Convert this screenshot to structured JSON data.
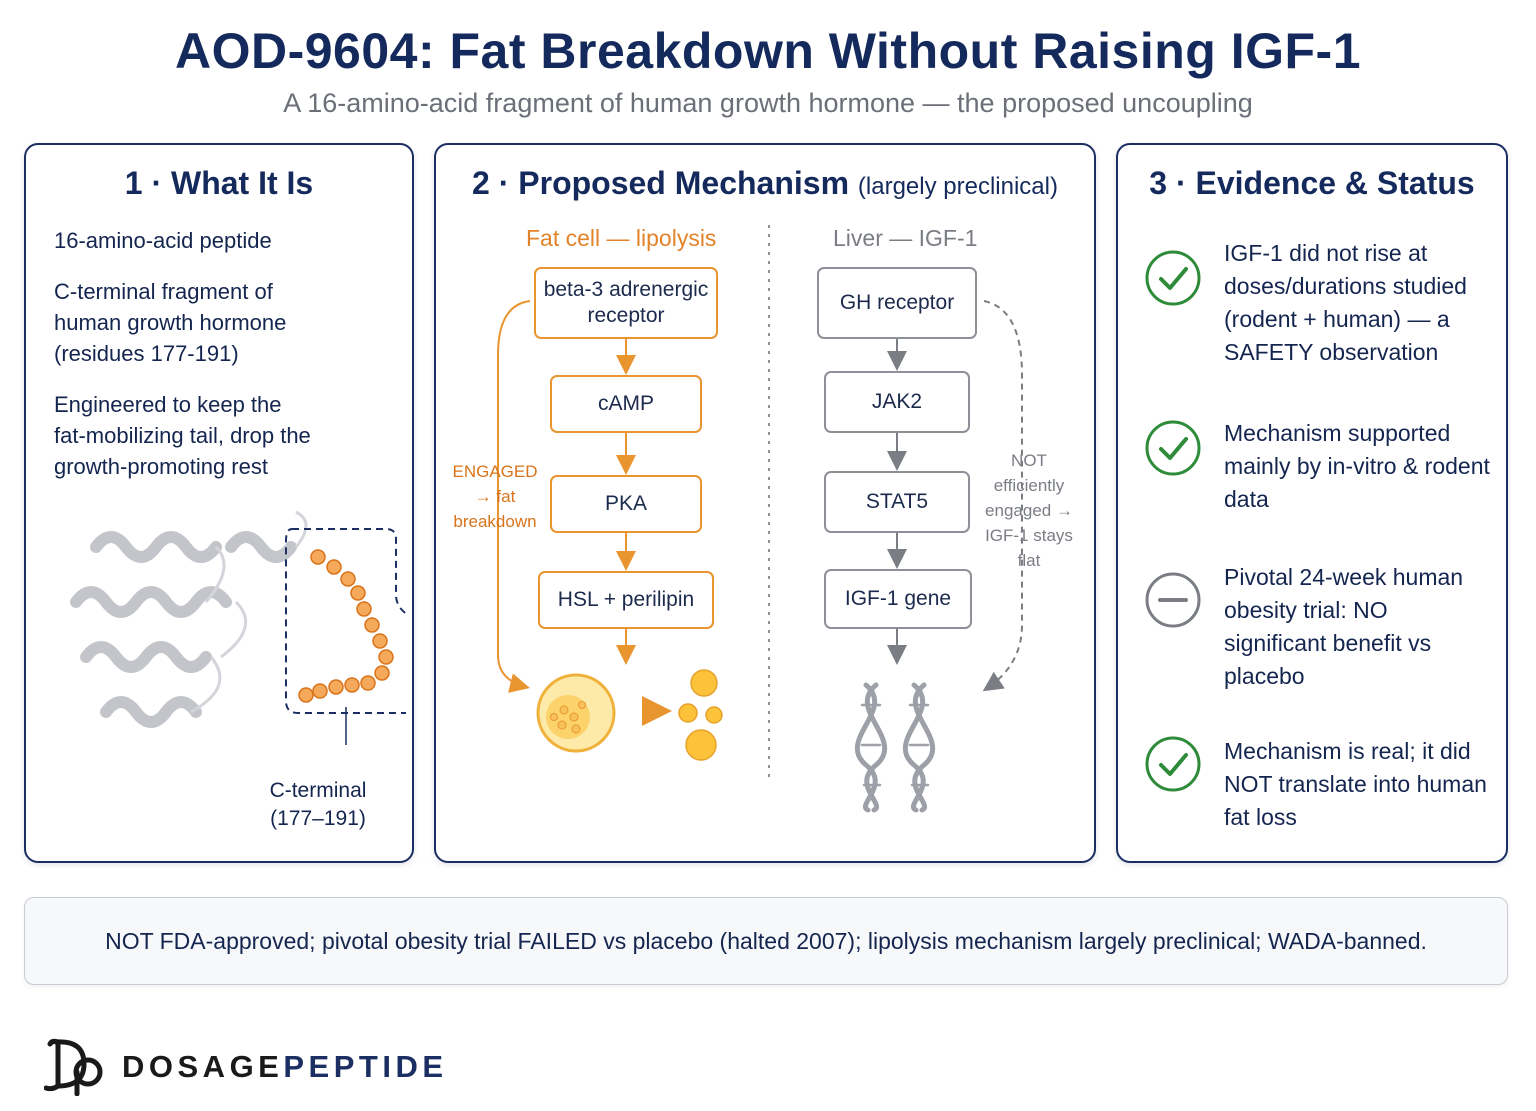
{
  "header": {
    "title": "AOD-9604: Fat Breakdown Without Raising IGF-1",
    "subtitle": "A 16-amino-acid fragment of human growth hormone — the proposed uncoupling"
  },
  "panel1": {
    "heading": "1 · What It Is",
    "items": [
      "16-amino-acid peptide",
      "C-terminal fragment of human growth hormone (residues 177-191)",
      "Engineered to keep the fat-mobilizing tail, drop the growth-promoting rest"
    ],
    "caption": "C-terminal (177–191)"
  },
  "panel2": {
    "heading": "2 · Proposed Mechanism",
    "heading_note": "(largely preclinical)",
    "left_column": {
      "title": "Fat cell — lipolysis",
      "steps": [
        "beta-3 adrenergic receptor",
        "cAMP",
        "PKA",
        "HSL + perilipin"
      ],
      "side_note": "ENGAGED → fat breakdown"
    },
    "right_column": {
      "title": "Liver — IGF-1",
      "steps": [
        "GH receptor",
        "JAK2",
        "STAT5",
        "IGF-1 gene"
      ],
      "side_note": "NOT efficiently engaged → IGF-1 stays flat"
    }
  },
  "panel3": {
    "heading": "3 · Evidence & Status",
    "items": [
      {
        "icon": "check-circle-icon",
        "text": "IGF-1 did not rise at doses/durations studied (rodent + human) — a SAFETY observation"
      },
      {
        "icon": "check-circle-icon",
        "text": "Mechanism supported mainly by in-vitro & rodent data"
      },
      {
        "icon": "minus-circle-icon",
        "text": "Pivotal 24-week human obesity trial: NO significant benefit vs placebo"
      },
      {
        "icon": "check-circle-icon",
        "text": "Mechanism is real; it did NOT translate into human fat loss"
      }
    ]
  },
  "footer": {
    "note": "NOT FDA-approved; pivotal obesity trial FAILED vs placebo (halted 2007); lipolysis mechanism largely preclinical; WADA-banned."
  },
  "brand": {
    "part1": "DOSAGE",
    "part2": "PEPTIDE"
  },
  "colors": {
    "navy": "#152a5c",
    "orange": "#e8952f",
    "green": "#2e8b3a",
    "gray": "#8d9096"
  }
}
